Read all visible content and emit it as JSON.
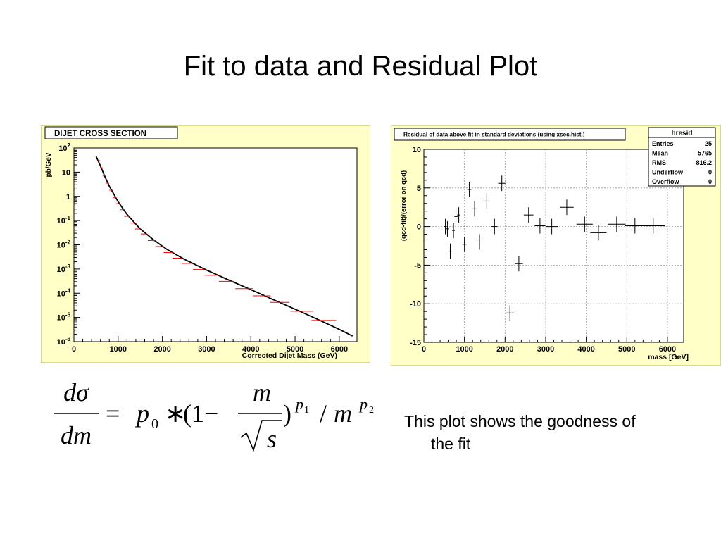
{
  "slide": {
    "title": "Fit to data  and Residual Plot",
    "caption_line1": "This plot shows the goodness of",
    "caption_line2": "the fit"
  },
  "formula": {
    "lhs_num": "dσ",
    "lhs_den": "dm",
    "eq": "=",
    "p0": "p",
    "p0_sub": "0",
    "times": "∗",
    "open": "(1−",
    "frac_num": "m",
    "frac_den": "s",
    "close": ")",
    "p1": "p",
    "p1_sub": "1",
    "slash": "/",
    "m": "m",
    "p2": "p",
    "p2_sub": "2"
  },
  "colors": {
    "panel_bg": "#ffffc8",
    "frame_bg": "#ffffff",
    "data": "#ff0000",
    "fit": "#000000",
    "grid": "#999999"
  },
  "chart_data": [
    {
      "type": "scatter",
      "title": "DIJET CROSS SECTION",
      "xlabel": "Corrected Dijet Mass (GeV)",
      "ylabel": "pb/GeV",
      "log_y": true,
      "xlim": [
        0,
        6400
      ],
      "ylim": [
        1e-06,
        100
      ],
      "x_ticks": [
        "0",
        "1000",
        "2000",
        "3000",
        "4000",
        "5000",
        "6000"
      ],
      "y_ticks": [
        {
          "base": "10",
          "exp": "2"
        },
        {
          "base": "10",
          "exp": ""
        },
        {
          "base": "1",
          "exp": ""
        },
        {
          "base": "10",
          "exp": "-1"
        },
        {
          "base": "10",
          "exp": "-2"
        },
        {
          "base": "10",
          "exp": "-3"
        },
        {
          "base": "10",
          "exp": "-4"
        },
        {
          "base": "10",
          "exp": "-5"
        },
        {
          "base": "10",
          "exp": "-6"
        }
      ],
      "series": [
        {
          "x": [
            560,
            620,
            690,
            760,
            840,
            920,
            1000,
            1100,
            1200,
            1330,
            1450,
            1580,
            1760,
            1940,
            2130,
            2330,
            2560,
            2820,
            3110,
            3450,
            3850,
            4250,
            4650,
            5150,
            5650
          ],
          "y": [
            30,
            15,
            7,
            3.5,
            1.8,
            0.9,
            0.5,
            0.28,
            0.15,
            0.08,
            0.045,
            0.028,
            0.015,
            0.0085,
            0.0048,
            0.0028,
            0.0017,
            0.00095,
            0.00055,
            0.00031,
            0.000155,
            7.8e-05,
            4.2e-05,
            1.8e-05,
            7.5e-06
          ],
          "xerr": [
            30,
            30,
            35,
            35,
            40,
            40,
            50,
            50,
            60,
            60,
            70,
            70,
            90,
            90,
            100,
            100,
            120,
            130,
            150,
            170,
            200,
            200,
            220,
            250,
            280
          ],
          "color": "#ff0000"
        }
      ],
      "fit_curve": {
        "x": [
          500,
          600,
          700,
          800,
          1000,
          1200,
          1500,
          1800,
          2100,
          2500,
          3000,
          3500,
          4000,
          4500,
          5000,
          5500,
          6000,
          6300
        ],
        "y": [
          45,
          18,
          6.5,
          2.6,
          0.6,
          0.18,
          0.045,
          0.016,
          0.0065,
          0.0025,
          0.0009,
          0.00035,
          0.00014,
          5.5e-05,
          2.2e-05,
          8.5e-06,
          3.2e-06,
          1.7e-06
        ]
      }
    },
    {
      "type": "scatter",
      "title": "Residual of data above fit in standard deviations (using xsec.hist.)",
      "xlabel": "mass [GeV]",
      "ylabel": "(qcd-fit)/(error on qcd)",
      "xlim": [
        0,
        6400
      ],
      "ylim": [
        -15,
        10
      ],
      "grid": true,
      "x_ticks": [
        "0",
        "1000",
        "2000",
        "3000",
        "4000",
        "5000",
        "6000"
      ],
      "y_ticks": [
        "10",
        "5",
        "0",
        "-5",
        "-10",
        "-15"
      ],
      "stats": {
        "name": "hresid",
        "rows": [
          {
            "label": "Entries",
            "value": "25"
          },
          {
            "label": "Mean",
            "value": "5765"
          },
          {
            "label": "RMS",
            "value": "816.2"
          },
          {
            "label": "Underflow",
            "value": "0"
          },
          {
            "label": "Overflow",
            "value": "0"
          }
        ]
      },
      "series": [
        {
          "x": [
            530,
            580,
            650,
            730,
            790,
            860,
            1000,
            1120,
            1250,
            1370,
            1550,
            1740,
            1920,
            2120,
            2340,
            2580,
            2860,
            3150,
            3520,
            3960,
            4300,
            4750,
            5200,
            5650,
            6000
          ],
          "y": [
            0.0,
            -0.3,
            -3.2,
            -0.5,
            1.3,
            1.5,
            -2.3,
            4.8,
            2.3,
            -2.0,
            3.3,
            0.0,
            5.6,
            -11.2,
            -4.8,
            1.5,
            0.1,
            0.0,
            2.5,
            0.3,
            -0.8,
            0.3,
            0.1,
            0.1,
            0.0
          ],
          "xerr": [
            30,
            30,
            35,
            35,
            40,
            40,
            50,
            50,
            60,
            60,
            70,
            70,
            90,
            100,
            100,
            120,
            130,
            150,
            170,
            200,
            200,
            220,
            250,
            280,
            0
          ],
          "yerr": [
            1,
            1,
            1,
            1,
            1,
            1,
            1,
            1,
            1,
            1,
            1,
            1,
            1,
            1,
            1,
            1,
            1,
            1,
            1,
            1,
            1,
            1,
            1,
            1,
            0
          ],
          "color": "#000000"
        }
      ]
    }
  ]
}
